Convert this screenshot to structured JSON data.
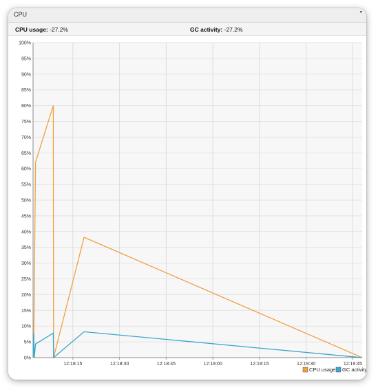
{
  "window": {
    "title": "CPU",
    "corner_glyph": "▪"
  },
  "stats": {
    "cpu_label": "CPU usage:",
    "cpu_value": "-27.2%",
    "gc_label": "GC activity:",
    "gc_value": "-27.2%"
  },
  "chart_data": {
    "type": "line",
    "y_ticks": [
      "0%",
      "5%",
      "10%",
      "15%",
      "20%",
      "25%",
      "30%",
      "35%",
      "40%",
      "45%",
      "50%",
      "55%",
      "60%",
      "65%",
      "70%",
      "75%",
      "80%",
      "85%",
      "90%",
      "95%",
      "100%"
    ],
    "x_ticks": [
      {
        "label": "12:18:15",
        "t": 0
      },
      {
        "label": "12:18:30",
        "t": 15
      },
      {
        "label": "12:18:45",
        "t": 30
      },
      {
        "label": "12:19:00",
        "t": 45
      },
      {
        "label": "12:19:15",
        "t": 60
      },
      {
        "label": "12:19:30",
        "t": 75
      },
      {
        "label": "12:19:45",
        "t": 90
      }
    ],
    "ylim": [
      0,
      100
    ],
    "xlim": [
      -12.8,
      93
    ],
    "grid": true,
    "legend_position": "bottom-right",
    "series": [
      {
        "name": "CPU usage",
        "color": "#f0a040",
        "points": [
          [
            -12.8,
            0
          ],
          [
            -12.6,
            0
          ],
          [
            -12.0,
            62
          ],
          [
            -6.3,
            80
          ],
          [
            -6.2,
            0
          ],
          [
            3.6,
            38.2
          ],
          [
            93,
            0
          ]
        ]
      },
      {
        "name": "GC activity",
        "color": "#3aa6cc",
        "points": [
          [
            -12.8,
            0
          ],
          [
            -12.6,
            7.5
          ],
          [
            -12.4,
            0
          ],
          [
            -12.0,
            4.3
          ],
          [
            -6.3,
            7.8
          ],
          [
            -6.2,
            0
          ],
          [
            3.6,
            8.2
          ],
          [
            93,
            0
          ]
        ]
      }
    ]
  }
}
